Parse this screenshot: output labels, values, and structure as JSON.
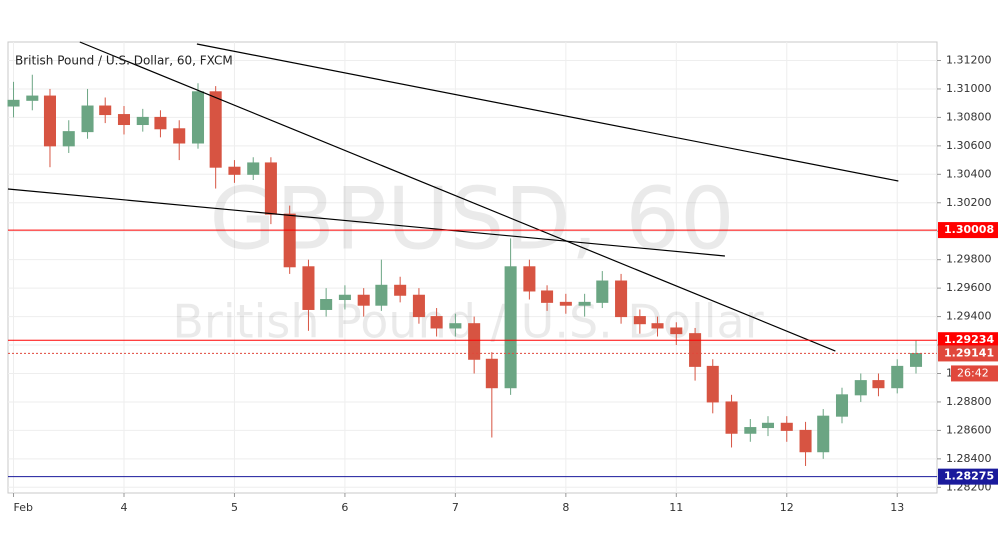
{
  "chart_data": {
    "type": "candlestick",
    "title": "British Pound / U.S. Dollar, 60, FXCM",
    "watermark_symbol": "GBPUSD, 60",
    "watermark_name": "British Pound / U.S. Dollar",
    "up_color": "#6ba583",
    "down_color": "#d75442",
    "x": [
      0,
      0.17,
      0.33,
      0.5,
      0.67,
      0.83,
      1,
      1.17,
      1.33,
      1.5,
      1.67,
      1.83,
      2,
      2.17,
      2.33,
      2.5,
      2.67,
      2.83,
      3,
      3.17,
      3.33,
      3.5,
      3.67,
      3.83,
      4,
      4.17,
      4.33,
      4.5,
      4.67,
      4.83,
      5,
      5.17,
      5.33,
      5.5,
      5.67,
      5.83,
      6,
      6.17,
      6.33,
      6.5,
      6.67,
      6.83,
      7,
      7.17,
      7.33,
      7.5,
      7.67,
      7.83,
      8,
      8.17
    ],
    "open": [
      1.3088,
      1.3092,
      1.3095,
      1.306,
      1.307,
      1.3088,
      1.3082,
      1.3075,
      1.308,
      1.3072,
      1.3062,
      1.3098,
      1.3045,
      1.304,
      1.3048,
      1.3012,
      1.2975,
      1.2945,
      1.2952,
      1.2955,
      1.2948,
      1.2962,
      1.2955,
      1.294,
      1.2932,
      1.2935,
      1.291,
      1.289,
      1.2975,
      1.2958,
      1.295,
      1.2948,
      1.295,
      1.2965,
      1.294,
      1.2935,
      1.2932,
      1.2928,
      1.2905,
      1.288,
      1.2858,
      1.2862,
      1.2865,
      1.286,
      1.2845,
      1.287,
      1.2885,
      1.2895,
      1.289,
      1.2905
    ],
    "high": [
      1.3105,
      1.311,
      1.31,
      1.3078,
      1.31,
      1.3094,
      1.3088,
      1.3086,
      1.3085,
      1.3078,
      1.3104,
      1.3102,
      1.305,
      1.3052,
      1.3052,
      1.3018,
      1.298,
      1.296,
      1.2962,
      1.296,
      1.298,
      1.2968,
      1.296,
      1.2946,
      1.2942,
      1.294,
      1.2915,
      1.2995,
      1.298,
      1.2962,
      1.2956,
      1.2956,
      1.2972,
      1.297,
      1.2945,
      1.294,
      1.2936,
      1.2932,
      1.291,
      1.2885,
      1.2868,
      1.287,
      1.287,
      1.2866,
      1.2875,
      1.289,
      1.29,
      1.29,
      1.291,
      1.2923
    ],
    "low": [
      1.308,
      1.3085,
      1.3045,
      1.3055,
      1.3065,
      1.3076,
      1.3068,
      1.307,
      1.3066,
      1.305,
      1.3058,
      1.303,
      1.3034,
      1.3036,
      1.3005,
      1.297,
      1.293,
      1.294,
      1.2945,
      1.294,
      1.2944,
      1.295,
      1.2935,
      1.2926,
      1.2926,
      1.29,
      1.2855,
      1.2885,
      1.2952,
      1.2944,
      1.2942,
      1.294,
      1.2946,
      1.2935,
      1.2928,
      1.2926,
      1.292,
      1.2895,
      1.2872,
      1.2848,
      1.2852,
      1.2856,
      1.2852,
      1.2835,
      1.284,
      1.2865,
      1.288,
      1.2884,
      1.2886,
      1.29
    ],
    "close": [
      1.3092,
      1.3095,
      1.306,
      1.307,
      1.3088,
      1.3082,
      1.3075,
      1.308,
      1.3072,
      1.3062,
      1.3098,
      1.3045,
      1.304,
      1.3048,
      1.3012,
      1.2975,
      1.2945,
      1.2952,
      1.2955,
      1.2948,
      1.2962,
      1.2955,
      1.294,
      1.2932,
      1.2935,
      1.291,
      1.289,
      1.2975,
      1.2958,
      1.295,
      1.2948,
      1.295,
      1.2965,
      1.294,
      1.2935,
      1.2932,
      1.2928,
      1.2905,
      1.288,
      1.2858,
      1.2862,
      1.2865,
      1.286,
      1.2845,
      1.287,
      1.2885,
      1.2895,
      1.289,
      1.2905,
      1.2914
    ],
    "xlim": [
      -0.05,
      8.36
    ],
    "xticks": [
      {
        "value": 0,
        "label": "Feb"
      },
      {
        "value": 1,
        "label": "4"
      },
      {
        "value": 2,
        "label": "5"
      },
      {
        "value": 3,
        "label": "6"
      },
      {
        "value": 4,
        "label": "7"
      },
      {
        "value": 5,
        "label": "8"
      },
      {
        "value": 6,
        "label": "11"
      },
      {
        "value": 7,
        "label": "12"
      },
      {
        "value": 8,
        "label": "13"
      }
    ],
    "ylim": [
      1.2816,
      1.3133
    ],
    "yticks": [
      {
        "value": 1.282,
        "label": "1.28200"
      },
      {
        "value": 1.284,
        "label": "1.28400"
      },
      {
        "value": 1.286,
        "label": "1.28600"
      },
      {
        "value": 1.288,
        "label": "1.28800"
      },
      {
        "value": 1.29,
        "label": "1.29000"
      },
      {
        "value": 1.292,
        "label": "1.29200"
      },
      {
        "value": 1.294,
        "label": "1.29400"
      },
      {
        "value": 1.296,
        "label": "1.29600"
      },
      {
        "value": 1.298,
        "label": "1.29800"
      },
      {
        "value": 1.3,
        "label": "1.30000"
      },
      {
        "value": 1.302,
        "label": "1.30200"
      },
      {
        "value": 1.304,
        "label": "1.30400"
      },
      {
        "value": 1.306,
        "label": "1.30600"
      },
      {
        "value": 1.308,
        "label": "1.30800"
      },
      {
        "value": 1.31,
        "label": "1.31000"
      },
      {
        "value": 1.312,
        "label": "1.31200"
      }
    ],
    "grid": true,
    "levels": [
      {
        "value": 1.30008,
        "color": "#ff0000",
        "dotted": false
      },
      {
        "value": 1.29234,
        "color": "#ff0000",
        "dotted": false
      },
      {
        "value": 1.29141,
        "color": "#e0483c",
        "dotted": true
      },
      {
        "value": 1.28275,
        "color": "#1a1a9c",
        "dotted": false
      }
    ],
    "countdown": "26:42",
    "trendlines": [
      {
        "x": [
          0.6,
          7.44
        ],
        "y": [
          1.3133,
          1.29158
        ]
      },
      {
        "x": [
          1.66,
          8.01
        ],
        "y": [
          1.31316,
          1.30353
        ]
      },
      {
        "x": [
          -0.05,
          6.44
        ],
        "y": [
          1.30297,
          1.29826
        ]
      }
    ]
  }
}
